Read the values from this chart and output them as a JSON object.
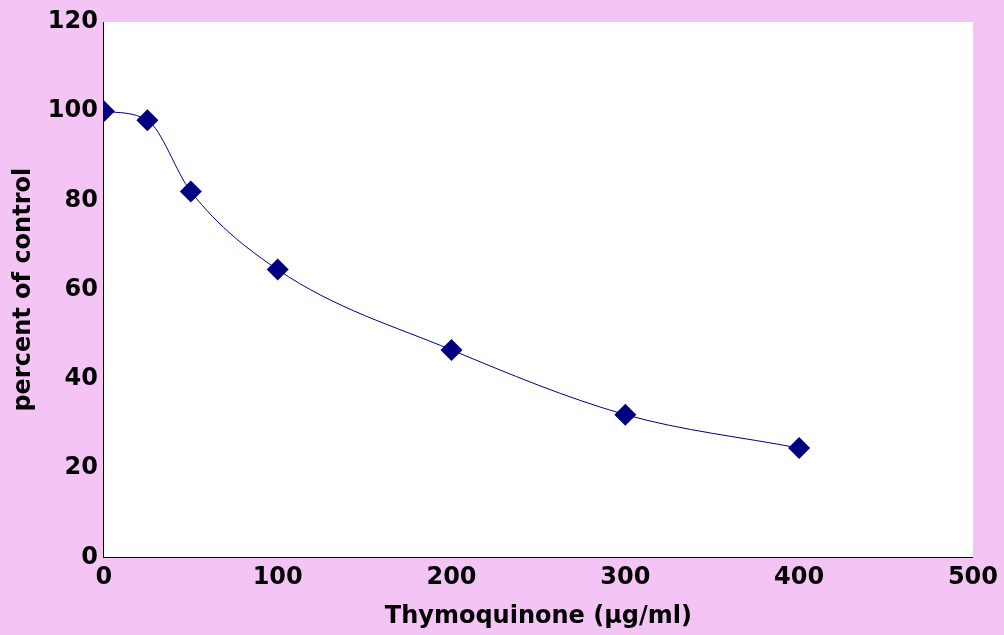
{
  "chart_data": {
    "type": "line",
    "xlabel": "Thymoquinone (µg/ml)",
    "ylabel": "percent of control",
    "x": [
      0,
      25,
      50,
      100,
      200,
      300,
      400
    ],
    "series": [
      {
        "color": "#000080",
        "values": [
          100,
          98,
          82,
          64.5,
          46.5,
          32,
          24.5
        ]
      }
    ],
    "xlim": [
      0,
      500
    ],
    "xticks": [
      0,
      100,
      200,
      300,
      400,
      500
    ],
    "ylim": [
      0,
      120
    ],
    "yticks": [
      0,
      20,
      40,
      60,
      80,
      100,
      120
    ],
    "grid": false,
    "legend": false,
    "marker": "diamond",
    "line_style": "solid"
  }
}
